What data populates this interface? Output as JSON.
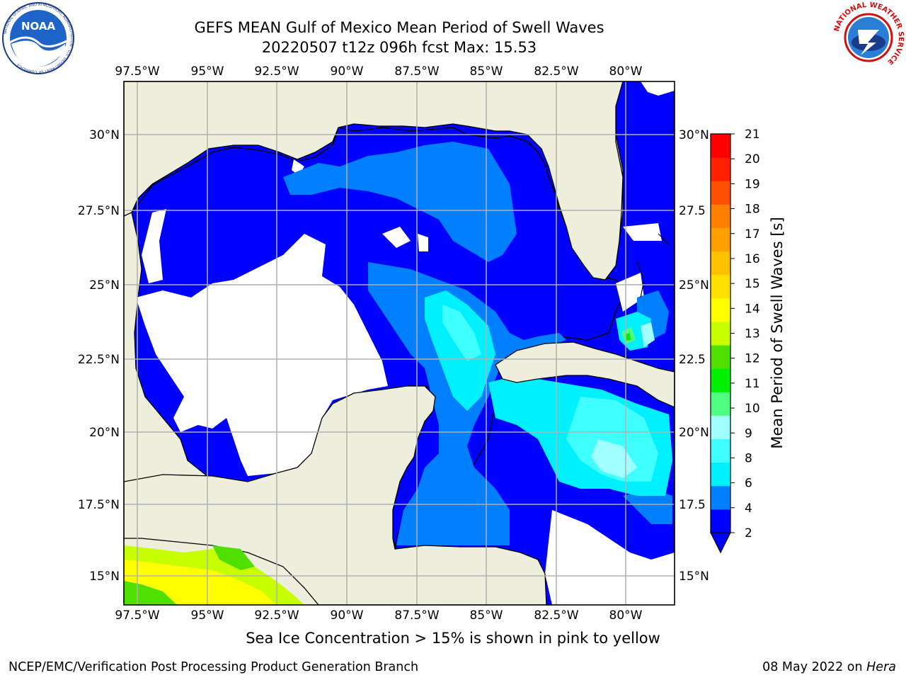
{
  "header": {
    "title": "GEFS MEAN Gulf of Mexico Mean Period of Swell Waves",
    "subtitle": "20220507 t12z 096h fcst   Max: 15.53"
  },
  "logos": {
    "noaa_text": "NOAA",
    "noaa_ring": "NATIONAL OCEANIC AND ATMOSPHERIC ADMINISTRATION · U.S. DEPARTMENT OF COMMERCE",
    "nws_ring": "NATIONAL WEATHER SERVICE"
  },
  "map": {
    "lon_ticks": [
      "97.5°W",
      "95°W",
      "92.5°W",
      "90°W",
      "87.5°W",
      "85°W",
      "82.5°W",
      "80°W"
    ],
    "lat_ticks_left": [
      "30°N",
      "27.5°N",
      "25°N",
      "22.5°N",
      "20°N",
      "17.5°N",
      "15°N"
    ],
    "lat_ticks_right": [
      "30°N",
      "27.5",
      "25°N",
      "22.5",
      "20°N",
      "17.5",
      "15°N"
    ],
    "colors": {
      "land": "#eeeedc",
      "ocean_missing": "#ffffff",
      "grid": "#b0b0b0"
    }
  },
  "colorbar": {
    "label": "Mean Period of Swell Waves [s]",
    "ticks": [
      "21",
      "20",
      "19",
      "18",
      "17",
      "16",
      "15",
      "14",
      "13",
      "12",
      "11",
      "10",
      "9",
      "8",
      "6",
      "4",
      "2"
    ],
    "colors_bottom_to_top": [
      "#0000ff",
      "#0080ff",
      "#00f0ff",
      "#40ffff",
      "#a0ffff",
      "#50ff80",
      "#00f000",
      "#50e000",
      "#c8ff00",
      "#ffff00",
      "#ffe000",
      "#ffc000",
      "#ffa000",
      "#ff8000",
      "#ff5000",
      "#ff2000",
      "#ff0000"
    ]
  },
  "footnote": "Sea Ice Concentration > 15% is shown in pink to yellow",
  "footer": {
    "left": "NCEP/EMC/Verification Post Processing Product Generation Branch",
    "right_date": "08 May 2022 on ",
    "right_host": "Hera"
  }
}
